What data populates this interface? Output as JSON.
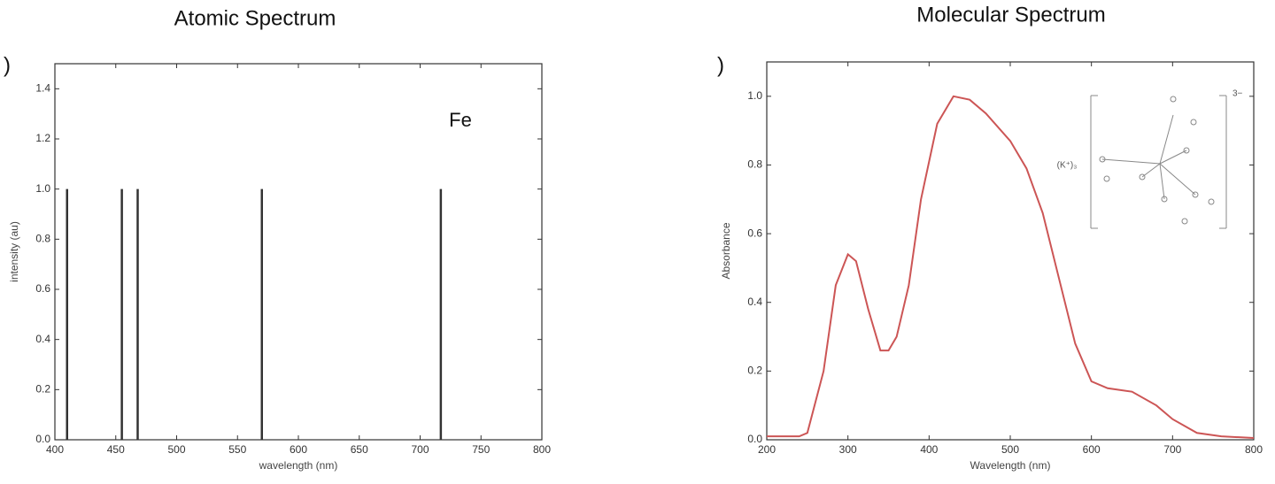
{
  "chart_data": [
    {
      "type": "stem",
      "title": "Atomic Spectrum",
      "panel_label": ")",
      "annotation": "Fe",
      "x_label": "wavelength (nm)",
      "y_label": "intensity (au)",
      "x": [
        410,
        455,
        468,
        570,
        717
      ],
      "values": [
        1,
        1,
        1,
        1,
        1
      ],
      "color": "#333333",
      "xlim": [
        400,
        800
      ],
      "xticks": [
        400,
        450,
        500,
        550,
        600,
        650,
        700,
        750,
        800
      ],
      "ylim": [
        0,
        1.5
      ],
      "yticks": [
        {
          "value": 0,
          "label": "0.0"
        },
        0.2,
        0.4,
        0.6,
        0.8,
        {
          "value": 1,
          "label": "1.0"
        },
        1.2,
        1.4
      ]
    },
    {
      "type": "line",
      "title": "Molecular Spectrum",
      "panel_label": ")",
      "annotation": "(K⁺)₃",
      "charge_label": "3−",
      "x_label": "Wavelength (nm)",
      "y_label": "Absorbance",
      "x": [
        200,
        240,
        250,
        270,
        285,
        300,
        310,
        325,
        340,
        350,
        360,
        375,
        390,
        410,
        430,
        450,
        470,
        500,
        520,
        540,
        560,
        580,
        600,
        620,
        650,
        680,
        700,
        730,
        760,
        800
      ],
      "values": [
        0.01,
        0.01,
        0.02,
        0.2,
        0.45,
        0.54,
        0.52,
        0.38,
        0.26,
        0.26,
        0.3,
        0.45,
        0.7,
        0.92,
        1.0,
        0.99,
        0.95,
        0.87,
        0.79,
        0.66,
        0.47,
        0.28,
        0.17,
        0.15,
        0.14,
        0.1,
        0.06,
        0.02,
        0.01,
        0.005
      ],
      "color": "#cc5555",
      "xlim": [
        200,
        800
      ],
      "xticks": [
        200,
        300,
        400,
        500,
        600,
        700,
        800
      ],
      "ylim": [
        0,
        1.1
      ],
      "yticks": [
        {
          "value": 0,
          "label": "0.0"
        },
        0.2,
        0.4,
        0.6,
        0.8,
        {
          "value": 1,
          "label": "1.0"
        }
      ]
    }
  ]
}
